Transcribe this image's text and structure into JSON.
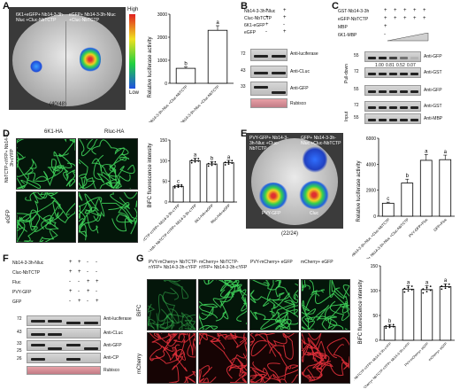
{
  "panels": {
    "A": {
      "letter": "A",
      "leaf_labels": [
        "6K1+eGFP+ Nb14-3-3h-Nluc +Cluc-NbTCTP",
        "eGFP+ Nb14-3-3h-Nluc +Cluc-NbTCTP"
      ],
      "count": "(40/48)",
      "scale_high": "High",
      "scale_low": "Low",
      "chart_data": {
        "type": "bar",
        "categories": [
          "6K1+eGFP+ Nb14-3-3h-Nluc +Cluc-NbTCTP",
          "eGFP+ Nb14-3-3h-Nluc +Cluc-NbTCTP"
        ],
        "values": [
          650,
          2300
        ],
        "errors": [
          60,
          200
        ],
        "letters": [
          "b",
          "a"
        ],
        "ylabel": "Relative luciferase activity",
        "yticks": [
          0,
          1000,
          2000,
          3000
        ],
        "ylim": [
          0,
          3000
        ]
      }
    },
    "B": {
      "letter": "B",
      "rows": [
        {
          "label": "Nb14-3-3h-Nluc",
          "marks": [
            "+",
            "+"
          ]
        },
        {
          "label": "Cluc-NbTCTP",
          "marks": [
            "+",
            "+"
          ]
        },
        {
          "label": "6K1-eGFP",
          "marks": [
            "+",
            "-"
          ]
        },
        {
          "label": "eGFP",
          "marks": [
            "-",
            "+"
          ]
        }
      ],
      "blots": [
        "Anti-luciferase",
        "Anti-CLuc",
        "Anti-GFP",
        "Rubisco"
      ],
      "markers": [
        "72",
        "43",
        "33"
      ]
    },
    "C": {
      "letter": "C",
      "rows": [
        {
          "label": "GST-Nb14-3-3h",
          "marks": [
            "+",
            "+",
            "+",
            "+",
            "+"
          ]
        },
        {
          "label": "eGFP-NbTCTP",
          "marks": [
            "+",
            "+",
            "+",
            "+",
            "+"
          ]
        },
        {
          "label": "MBP",
          "marks": [
            "+",
            "",
            "",
            "",
            ""
          ]
        },
        {
          "label": "6K1-MBP",
          "marks": [
            "-",
            "",
            "",
            "",
            ""
          ]
        }
      ],
      "ratios": [
        "1.00",
        "0.81",
        "0.52",
        "0.07"
      ],
      "blots": [
        "Anti-GFP",
        "Anti-GST",
        "Anti-GFP",
        "Anti-GST",
        "Anti-MBP"
      ],
      "markers": [
        "55",
        "72",
        "55",
        "72",
        "55"
      ],
      "group_labels": [
        "Pull-down",
        "Input"
      ]
    },
    "D": {
      "letter": "D",
      "col_labels": [
        "6K1-HA",
        "Rluc-HA"
      ],
      "row_labels": [
        "NbTCTP-nYFP+ Nb14-3-3h-cYFP",
        "eGFP"
      ],
      "chart_data": {
        "type": "bar",
        "categories": [
          "6K1-HA+ NbTCTP-nYFP+ Nb14-3-3h-cYFP",
          "Rluc-HA+ NbTCTP-nYFP+ Nb14-3-3h-cYFP",
          "6K1-HA+eGFP",
          "Rluc-HA+eGFP"
        ],
        "values": [
          38,
          100,
          92,
          95
        ],
        "errors": [
          4,
          6,
          6,
          6
        ],
        "letters": [
          "c",
          "a",
          "b",
          "a"
        ],
        "ylabel": "BiFC fluorescence intensity",
        "yticks": [
          0,
          50,
          100,
          150
        ],
        "ylim": [
          0,
          150
        ]
      }
    },
    "E": {
      "letter": "E",
      "leaf_labels": [
        "PVY-GFP+ Nb14-3-3h-Nluc +Cluc-NbTCTP",
        "GFP+ Nb14-3-3h-Nluc +Cluc-NbTCTP",
        "PVY-GFP",
        "Cluc"
      ],
      "count": "(22/24)",
      "chart_data": {
        "type": "bar",
        "categories": [
          "PVY-GFP+ Nb14-3-3h-Nluc +Cluc-NbTCTP",
          "GFP+ Nb14-3-3h-Nluc +Cluc-NbTCTP",
          "PVY-GFP+Fluc",
          "GFP+Fluc"
        ],
        "values": [
          1000,
          2550,
          4300,
          4350
        ],
        "errors": [
          80,
          300,
          450,
          350
        ],
        "letters": [
          "c",
          "b",
          "a",
          "a"
        ],
        "ylabel": "Relative luciferase activity",
        "yticks": [
          0,
          2000,
          4000,
          6000
        ],
        "ylim": [
          0,
          6000
        ]
      }
    },
    "F": {
      "letter": "F",
      "rows": [
        {
          "label": "Nb14-3-3h-Nluc",
          "marks": [
            "+",
            "+",
            "-",
            "-"
          ]
        },
        {
          "label": "Cluc-NbTCTP",
          "marks": [
            "+",
            "+",
            "-",
            "-"
          ]
        },
        {
          "label": "Fluc",
          "marks": [
            "-",
            "-",
            "+",
            "+"
          ]
        },
        {
          "label": "PVY-GFP",
          "marks": [
            "+",
            "-",
            "+",
            "-"
          ]
        },
        {
          "label": "GFP",
          "marks": [
            "-",
            "+",
            "-",
            "+"
          ]
        }
      ],
      "blots": [
        "Anti-luciferase",
        "Anti-CLuc",
        "Anti-GFP",
        "Anti-CP",
        "Rubisco"
      ],
      "markers": [
        "72",
        "43",
        "33",
        "25",
        "26"
      ]
    },
    "G": {
      "letter": "G",
      "col_labels": [
        "PVY-mCherry+ NbTCTP-nYFP+ Nb14-3-3h-cYFP",
        "mCherry+ NbTCTP-nYFP+ Nb14-3-3h-cYFP",
        "PVY-mCherry+ eGFP",
        "mCherry+ eGFP"
      ],
      "row_labels": [
        "BiFC",
        "mCherry"
      ],
      "chart_data": {
        "type": "bar",
        "categories": [
          "PVY-mCherry+ NbTCTP-nYFP+ Nb14-3-3h-cYFP",
          "mCherry+ NbTCTP-nYFP+ Nb14-3-3h-cYFP",
          "PVY-mCherry+ eGFP",
          "mCherry+ eGFP"
        ],
        "values": [
          28,
          103,
          102,
          108
        ],
        "errors": [
          4,
          7,
          8,
          6
        ],
        "letters": [
          "b",
          "a",
          "a",
          "a"
        ],
        "ylabel": "BiFC fluorescence intensity",
        "yticks": [
          0,
          50,
          100,
          150
        ],
        "ylim": [
          0,
          150
        ]
      }
    }
  },
  "colors": {
    "bar_white": "#ffffff",
    "bar_black": "#000000",
    "cell_green": "#3fd35a",
    "cell_red": "#e0303a"
  }
}
